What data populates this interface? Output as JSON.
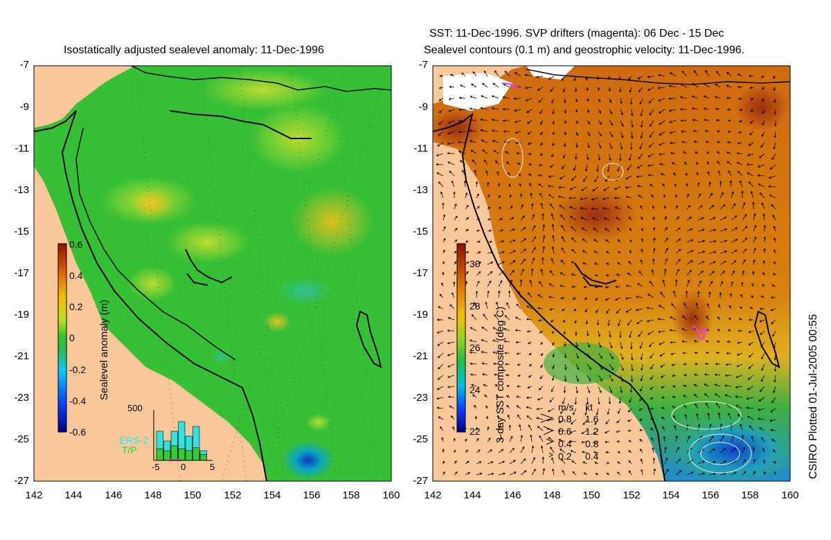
{
  "left_panel": {
    "title": "Isostatically adjusted sealevel anomaly: 11-Dec-1996",
    "colorbar_label": "Sealevel anomaly (m)",
    "colorbar_ticks": [
      "0.6",
      "0.4",
      "0.2",
      "0",
      "-0.2",
      "-0.4",
      "-0.6"
    ],
    "histogram": {
      "ymax_label": "500",
      "xticks": [
        "-5",
        "0",
        "5"
      ],
      "legend": [
        {
          "label": "ERS-2",
          "color": "#33e0e0"
        },
        {
          "label": "T/P",
          "color": "#33cc33"
        }
      ],
      "ers2_bars": [
        300,
        200,
        300,
        400,
        250,
        350,
        100
      ],
      "tp_bars": [
        120,
        100,
        150,
        120,
        100,
        130,
        60
      ]
    }
  },
  "right_panel": {
    "title_line1": "SST: 11-Dec-1996. SVP drifters (magenta): 06 Dec - 15 Dec",
    "title_line2": "Sealevel contours (0.1 m) and geostrophic velocity: 11-Dec-1996.",
    "colorbar_label": "3-day SST composite (deg C)",
    "colorbar_ticks": [
      "30",
      "28",
      "26",
      "24",
      "22"
    ],
    "velocity_legend": {
      "header": [
        "m/s",
        "kt"
      ],
      "rows": [
        [
          "0.8",
          "1.6"
        ],
        [
          "0.6",
          "1.2"
        ],
        [
          "0.4",
          "0.8"
        ],
        [
          "0.2",
          "0.4"
        ]
      ]
    }
  },
  "axes": {
    "y_ticks": [
      "-7",
      "-9",
      "-11",
      "-13",
      "-15",
      "-17",
      "-19",
      "-21",
      "-23",
      "-25",
      "-27"
    ],
    "x_ticks": [
      "142",
      "144",
      "146",
      "148",
      "150",
      "152",
      "154",
      "156",
      "158",
      "160"
    ]
  },
  "credit": "CSIRO Plotted 01-Jul-2005 00:55",
  "colors": {
    "land": "#f9c89a",
    "coast": "#000000",
    "ocean_mid": "#3cc43c"
  }
}
